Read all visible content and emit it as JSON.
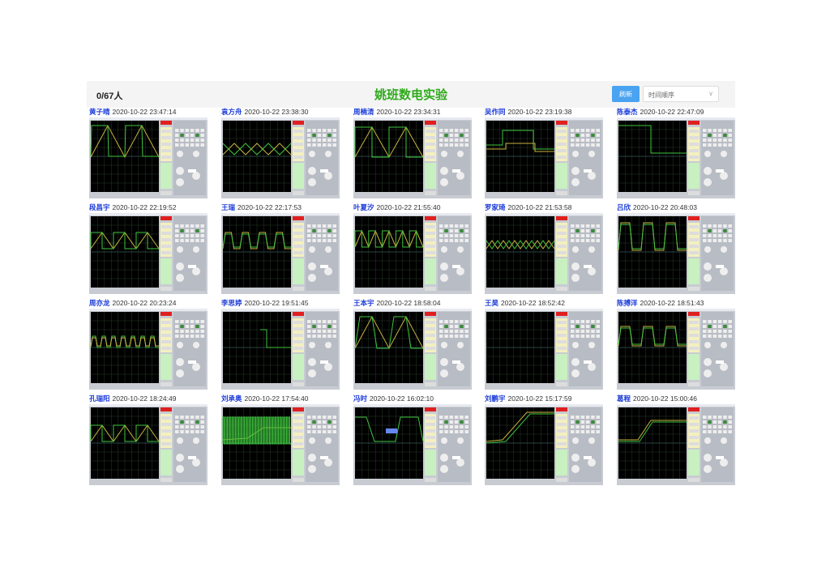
{
  "header": {
    "count": "0/67人",
    "title": "姚班数电实验",
    "refresh_label": "刷新",
    "sort_value": "时间顺序"
  },
  "colors": {
    "title": "#2eaa1a",
    "name": "#1a3ad8",
    "button": "#4aa3f0",
    "scope_bg": "#000000",
    "trace_yellow": "#c8b440",
    "trace_green": "#3ec43e"
  },
  "submissions": [
    {
      "name": "黄子晴",
      "time": "2020-10-22 23:47:14"
    },
    {
      "name": "袁方舟",
      "time": "2020-10-22 23:38:30"
    },
    {
      "name": "周楠清",
      "time": "2020-10-22 23:34:31"
    },
    {
      "name": "吴作同",
      "time": "2020-10-22 23:19:38"
    },
    {
      "name": "陈泰杰",
      "time": "2020-10-22 22:47:09"
    },
    {
      "name": "段昌宇",
      "time": "2020-10-22 22:19:52"
    },
    {
      "name": "王瑞",
      "time": "2020-10-22 22:17:53"
    },
    {
      "name": "叶夏汐",
      "time": "2020-10-22 21:55:40"
    },
    {
      "name": "罗家琦",
      "time": "2020-10-22 21:53:58"
    },
    {
      "name": "吕欣",
      "time": "2020-10-22 20:48:03"
    },
    {
      "name": "周亦龙",
      "time": "2020-10-22 20:23:24"
    },
    {
      "name": "李思婷",
      "time": "2020-10-22 19:51:45"
    },
    {
      "name": "王本宇",
      "time": "2020-10-22 18:58:04"
    },
    {
      "name": "王昊",
      "time": "2020-10-22 18:52:42"
    },
    {
      "name": "陈搏洋",
      "time": "2020-10-22 18:51:43"
    },
    {
      "name": "孔瑞阳",
      "time": "2020-10-22 18:24:49"
    },
    {
      "name": "刘承奥",
      "time": "2020-10-22 17:54:40"
    },
    {
      "name": "冯时",
      "time": "2020-10-22 16:02:10"
    },
    {
      "name": "刘鹏宇",
      "time": "2020-10-22 15:17:59"
    },
    {
      "name": "葛程",
      "time": "2020-10-22 15:00:46"
    }
  ]
}
